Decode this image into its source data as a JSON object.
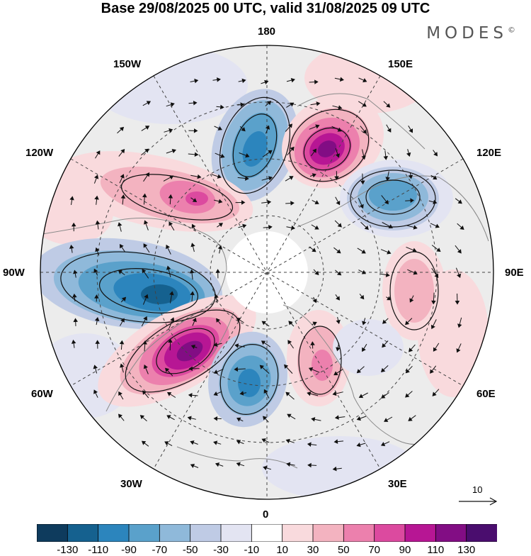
{
  "title": "Base 29/08/2025 00 UTC, valid 31/08/2025 09 UTC",
  "brand": "MODES",
  "brand_mark": "©",
  "longitude_labels": {
    "top": "180",
    "bottom": "0",
    "left": "90W",
    "right": "90E",
    "upper_left": "150W",
    "upper_right": "150E",
    "mid_left": "120W",
    "mid_right": "120E",
    "lower_left": "60W",
    "lower_right": "60E",
    "bottom_left": "30W",
    "bottom_right": "30E"
  },
  "reference_vector": {
    "label": "10"
  },
  "colorbar": {
    "labels": [
      "-130",
      "-110",
      "-90",
      "-70",
      "-50",
      "-30",
      "-10",
      "10",
      "30",
      "50",
      "70",
      "90",
      "110",
      "130"
    ],
    "colors": [
      "#0e3b5d",
      "#15618f",
      "#2c85bd",
      "#5aa1cb",
      "#8fb9da",
      "#bfcbe5",
      "#e3e4f2",
      "#ffffff",
      "#f9dadd",
      "#f3b3c0",
      "#ec80ad",
      "#dc4a9f",
      "#b71694",
      "#820d84",
      "#4a0d6e"
    ]
  },
  "colors": {
    "land": "#8a8a8a",
    "graticule": "#444444",
    "neutral": "#ececec"
  }
}
